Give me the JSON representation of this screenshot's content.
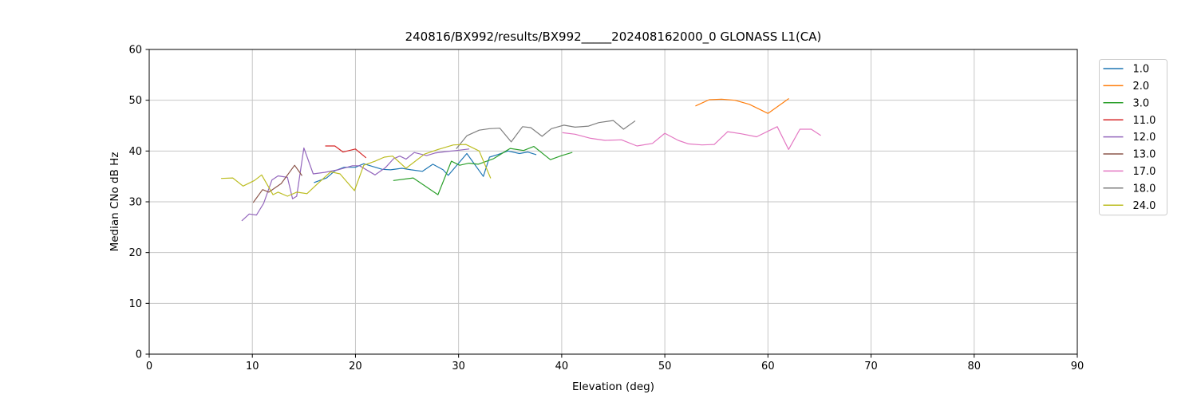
{
  "chart_data": {
    "type": "line",
    "title": "240816/BX992/results/BX992_____202408162000_0 GLONASS L1(CA)",
    "xlabel": "Elevation (deg)",
    "ylabel": "Median CNo dB Hz",
    "xlim": [
      0,
      90
    ],
    "ylim": [
      0,
      60
    ],
    "xticks": [
      0,
      10,
      20,
      30,
      40,
      50,
      60,
      70,
      80,
      90
    ],
    "yticks": [
      0,
      10,
      20,
      30,
      40,
      50,
      60
    ],
    "grid": true,
    "legend_position": "outside-right",
    "series": [
      {
        "name": "1.0",
        "color": "#1f77b4",
        "points": [
          [
            16.0,
            33.8
          ],
          [
            17.2,
            34.7
          ],
          [
            18.0,
            36.1
          ],
          [
            18.9,
            36.8
          ],
          [
            20.0,
            36.8
          ],
          [
            20.8,
            37.5
          ],
          [
            21.6,
            37.0
          ],
          [
            22.6,
            36.4
          ],
          [
            23.4,
            36.3
          ],
          [
            24.5,
            36.6
          ],
          [
            25.4,
            36.3
          ],
          [
            26.5,
            36.0
          ],
          [
            27.5,
            37.4
          ],
          [
            28.5,
            36.3
          ],
          [
            29.0,
            35.2
          ],
          [
            30.8,
            39.5
          ],
          [
            32.4,
            35.0
          ],
          [
            33.0,
            38.8
          ],
          [
            33.8,
            39.3
          ],
          [
            34.8,
            40.0
          ],
          [
            35.9,
            39.5
          ],
          [
            36.7,
            39.8
          ],
          [
            37.5,
            39.3
          ]
        ]
      },
      {
        "name": "2.0",
        "color": "#ff7f0e",
        "points": [
          [
            53.0,
            48.9
          ],
          [
            54.3,
            50.1
          ],
          [
            55.5,
            50.2
          ],
          [
            56.8,
            50.0
          ],
          [
            58.2,
            49.2
          ],
          [
            60.0,
            47.4
          ],
          [
            62.0,
            50.3
          ]
        ]
      },
      {
        "name": "3.0",
        "color": "#2ca02c",
        "points": [
          [
            23.7,
            34.2
          ],
          [
            25.6,
            34.7
          ],
          [
            28.0,
            31.4
          ],
          [
            29.3,
            38.0
          ],
          [
            30.1,
            37.2
          ],
          [
            31.0,
            37.6
          ],
          [
            31.9,
            37.4
          ],
          [
            33.4,
            38.5
          ],
          [
            35.0,
            40.5
          ],
          [
            36.3,
            40.1
          ],
          [
            37.3,
            40.9
          ],
          [
            38.9,
            38.3
          ],
          [
            40.0,
            39.1
          ],
          [
            41.0,
            39.7
          ]
        ]
      },
      {
        "name": "11.0",
        "color": "#d62728",
        "points": [
          [
            17.1,
            41.0
          ],
          [
            18.0,
            41.0
          ],
          [
            18.8,
            39.8
          ],
          [
            20.0,
            40.4
          ],
          [
            21.0,
            38.7
          ]
        ]
      },
      {
        "name": "12.0",
        "color": "#9467bd",
        "points": [
          [
            9.0,
            26.3
          ],
          [
            9.7,
            27.6
          ],
          [
            10.4,
            27.4
          ],
          [
            11.1,
            29.7
          ],
          [
            11.9,
            34.3
          ],
          [
            12.5,
            35.1
          ],
          [
            13.4,
            34.8
          ],
          [
            13.9,
            30.6
          ],
          [
            14.3,
            31.1
          ],
          [
            15.0,
            40.6
          ],
          [
            15.9,
            35.5
          ],
          [
            17.0,
            35.8
          ],
          [
            18.3,
            36.3
          ],
          [
            19.7,
            37.1
          ],
          [
            20.4,
            37.1
          ],
          [
            21.9,
            35.3
          ],
          [
            22.9,
            36.7
          ],
          [
            23.7,
            38.5
          ],
          [
            24.3,
            39.0
          ],
          [
            24.9,
            38.4
          ],
          [
            25.7,
            39.7
          ],
          [
            26.9,
            39.1
          ],
          [
            27.7,
            39.6
          ],
          [
            28.8,
            39.9
          ],
          [
            29.8,
            40.1
          ],
          [
            31.0,
            40.4
          ]
        ]
      },
      {
        "name": "13.0",
        "color": "#8c564b",
        "points": [
          [
            10.1,
            29.9
          ],
          [
            11.0,
            32.4
          ],
          [
            11.6,
            31.9
          ],
          [
            12.8,
            33.6
          ],
          [
            14.1,
            37.2
          ],
          [
            14.8,
            35.2
          ]
        ]
      },
      {
        "name": "17.0",
        "color": "#e377c2",
        "points": [
          [
            40.1,
            43.6
          ],
          [
            41.3,
            43.3
          ],
          [
            42.8,
            42.5
          ],
          [
            44.2,
            42.1
          ],
          [
            45.8,
            42.2
          ],
          [
            47.3,
            41.0
          ],
          [
            48.8,
            41.5
          ],
          [
            50.0,
            43.5
          ],
          [
            51.3,
            42.1
          ],
          [
            52.3,
            41.4
          ],
          [
            53.6,
            41.2
          ],
          [
            54.8,
            41.3
          ],
          [
            56.1,
            43.8
          ],
          [
            57.4,
            43.4
          ],
          [
            58.9,
            42.8
          ],
          [
            60.9,
            44.8
          ],
          [
            62.0,
            40.3
          ],
          [
            63.1,
            44.3
          ],
          [
            64.2,
            44.3
          ],
          [
            65.1,
            43.1
          ]
        ]
      },
      {
        "name": "18.0",
        "color": "#7f7f7f",
        "points": [
          [
            29.8,
            40.5
          ],
          [
            30.8,
            43.0
          ],
          [
            32.0,
            44.1
          ],
          [
            33.0,
            44.4
          ],
          [
            34.0,
            44.5
          ],
          [
            35.1,
            41.8
          ],
          [
            36.2,
            44.8
          ],
          [
            37.0,
            44.6
          ],
          [
            38.1,
            42.9
          ],
          [
            39.0,
            44.4
          ],
          [
            40.2,
            45.1
          ],
          [
            41.3,
            44.7
          ],
          [
            42.6,
            44.9
          ],
          [
            43.6,
            45.6
          ],
          [
            45.0,
            46.0
          ],
          [
            46.0,
            44.3
          ],
          [
            47.1,
            45.9
          ]
        ]
      },
      {
        "name": "24.0",
        "color": "#bcbd22",
        "points": [
          [
            7.0,
            34.6
          ],
          [
            8.1,
            34.7
          ],
          [
            9.1,
            33.1
          ],
          [
            10.2,
            34.2
          ],
          [
            10.9,
            35.3
          ],
          [
            12.0,
            31.4
          ],
          [
            12.5,
            31.9
          ],
          [
            13.4,
            31.1
          ],
          [
            14.3,
            31.9
          ],
          [
            15.3,
            31.6
          ],
          [
            16.3,
            33.5
          ],
          [
            17.6,
            35.9
          ],
          [
            18.5,
            35.5
          ],
          [
            19.9,
            32.2
          ],
          [
            20.8,
            37.2
          ],
          [
            21.9,
            38.0
          ],
          [
            22.8,
            38.8
          ],
          [
            23.6,
            39.0
          ],
          [
            24.9,
            36.6
          ],
          [
            26.7,
            39.4
          ],
          [
            28.0,
            40.3
          ],
          [
            29.5,
            41.2
          ],
          [
            30.7,
            41.3
          ],
          [
            32.0,
            40.0
          ],
          [
            33.1,
            34.7
          ]
        ]
      }
    ]
  }
}
